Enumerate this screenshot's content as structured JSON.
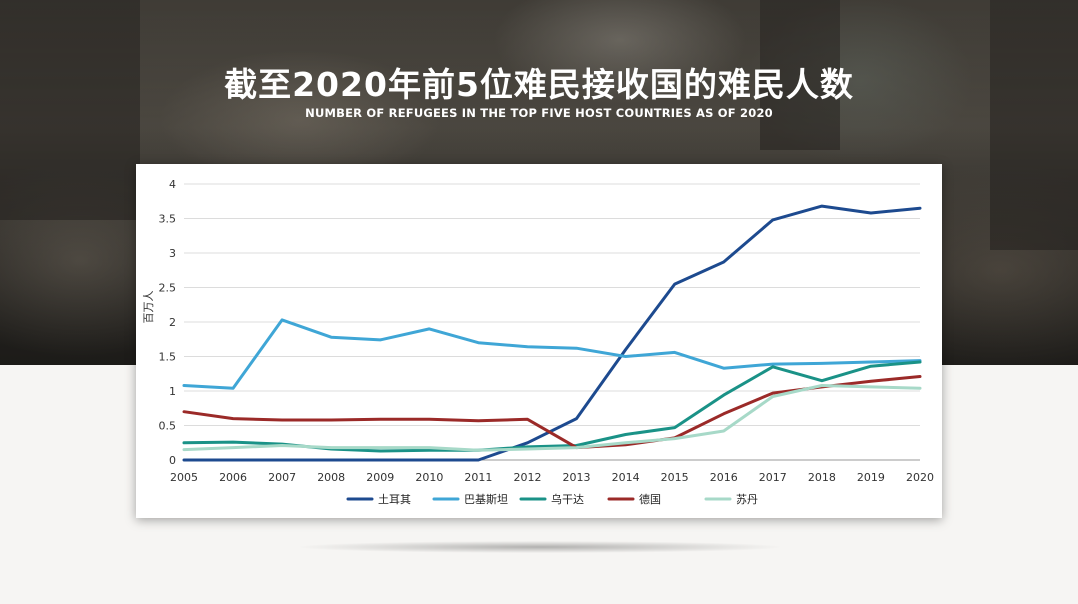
{
  "header": {
    "title": "截至2020年前5位难民接收国的难民人数",
    "subtitle": "NUMBER OF REFUGEES IN THE TOP FIVE HOST COUNTRIES AS OF 2020"
  },
  "chart_data": {
    "type": "line",
    "title": "截至2020年前5位难民接收国的难民人数",
    "subtitle": "NUMBER OF REFUGEES IN THE TOP FIVE HOST COUNTRIES AS OF 2020",
    "xlabel": "",
    "ylabel": "百万人",
    "x": [
      2005,
      2006,
      2007,
      2008,
      2009,
      2010,
      2011,
      2012,
      2013,
      2014,
      2015,
      2016,
      2017,
      2018,
      2019,
      2020
    ],
    "ylim": [
      0,
      4
    ],
    "yticks": [
      0,
      0.5,
      1,
      1.5,
      2,
      2.5,
      3,
      3.5,
      4
    ],
    "grid": true,
    "legend_position": "bottom",
    "series": [
      {
        "name": "土耳其",
        "color": "#1d4a8f",
        "values": [
          0.0,
          0.0,
          0.0,
          0.0,
          0.0,
          0.0,
          0.0,
          0.25,
          0.6,
          1.6,
          2.55,
          2.87,
          3.48,
          3.68,
          3.58,
          3.65
        ]
      },
      {
        "name": "巴基斯坦",
        "color": "#3fa6d6",
        "values": [
          1.08,
          1.04,
          2.03,
          1.78,
          1.74,
          1.9,
          1.7,
          1.64,
          1.62,
          1.5,
          1.56,
          1.33,
          1.39,
          1.4,
          1.42,
          1.44
        ]
      },
      {
        "name": "乌干达",
        "color": "#1a9287",
        "values": [
          0.25,
          0.26,
          0.23,
          0.16,
          0.13,
          0.14,
          0.14,
          0.19,
          0.21,
          0.37,
          0.47,
          0.94,
          1.35,
          1.15,
          1.36,
          1.42
        ]
      },
      {
        "name": "德国",
        "color": "#9b2a28",
        "values": [
          0.7,
          0.6,
          0.58,
          0.58,
          0.59,
          0.59,
          0.57,
          0.59,
          0.18,
          0.22,
          0.32,
          0.67,
          0.97,
          1.06,
          1.14,
          1.21
        ]
      },
      {
        "name": "苏丹",
        "color": "#a7d9c8",
        "values": [
          0.15,
          0.18,
          0.21,
          0.18,
          0.18,
          0.18,
          0.14,
          0.16,
          0.18,
          0.25,
          0.31,
          0.42,
          0.92,
          1.08,
          1.06,
          1.04
        ]
      }
    ]
  }
}
